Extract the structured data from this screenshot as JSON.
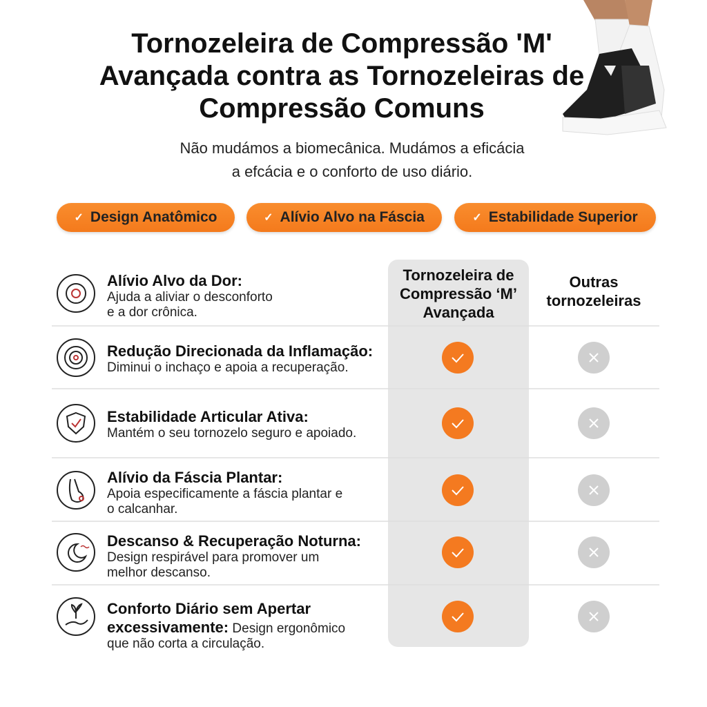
{
  "header": {
    "title_lines": [
      "Tornozeleira de Compressão 'M'",
      "Avançada contra as Tornozeleiras de",
      "Compressão Comuns"
    ],
    "subtitle_lines": [
      "Não mudámos a biomecânica. Mudámos a eficácia",
      "a efcácia e o conforto de uso diário."
    ]
  },
  "badges": [
    "Design Anatômico",
    "Alívio Alvo na Fáscia",
    "Estabilidade Superior"
  ],
  "columns": [
    "Tornozeleira de Compressão ‘M’ Avançada",
    "Outras tornozeleiras"
  ],
  "rows": [
    {
      "title": "Alívio Alvo da Dor:",
      "description": [
        "Ajuda a aliviar o desconforto",
        "e a dor crônica."
      ]
    },
    {
      "title": "Redução Direcionada da Inflamação:",
      "description": [
        "Diminui o inchaço e apoia a recuperação."
      ]
    },
    {
      "title": "Estabilidade Articular Ativa:",
      "description": [
        "Mantém o seu tornozelo seguro e apoiado."
      ]
    },
    {
      "title": "Alívio da Fáscia Plantar:",
      "description": [
        "Apoia especificamente a fáscia plantar e",
        "o calcanhar."
      ]
    },
    {
      "title": "Descanso & Recuperação Noturna:",
      "description": [
        "Design respirável para promover um",
        "melhor descanso."
      ]
    },
    {
      "title": "Conforto Diário sem Apertar excessivamente:",
      "description": [
        "Design ergonômico",
        "que não corta a circulação."
      ]
    }
  ]
}
